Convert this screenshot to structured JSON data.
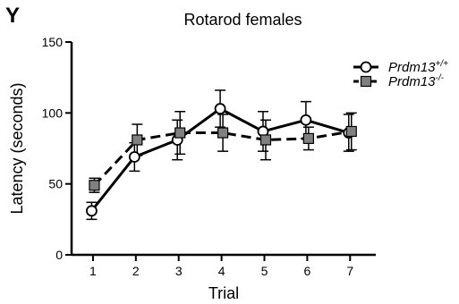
{
  "panel_label": "Y",
  "chart_data": {
    "type": "line",
    "title": "Rotarod females",
    "xlabel": "Trial",
    "ylabel": "Latency (seconds)",
    "x": [
      1,
      2,
      3,
      4,
      5,
      6,
      7
    ],
    "xlim": [
      0.5,
      7.6
    ],
    "ylim": [
      0,
      150
    ],
    "yticks": [
      0,
      50,
      100,
      150
    ],
    "grid": false,
    "legend_position": "top-right",
    "series": [
      {
        "name_base": "Prdm13",
        "name_sup": "+/+",
        "style": "solid",
        "marker": "circle-open",
        "color": "#000000",
        "marker_fill": "#ffffff",
        "values": [
          31,
          69,
          81,
          103,
          87,
          95,
          86
        ],
        "errors": [
          6,
          10,
          14,
          13,
          14,
          13,
          13
        ]
      },
      {
        "name_base": "Prdm13",
        "name_sup": "-/-",
        "style": "dashed",
        "marker": "square-filled",
        "color": "#000000",
        "marker_fill": "#808080",
        "values": [
          49,
          81,
          86,
          86,
          81,
          82,
          87
        ],
        "errors": [
          5,
          11,
          15,
          13,
          14,
          8,
          13
        ]
      }
    ]
  }
}
